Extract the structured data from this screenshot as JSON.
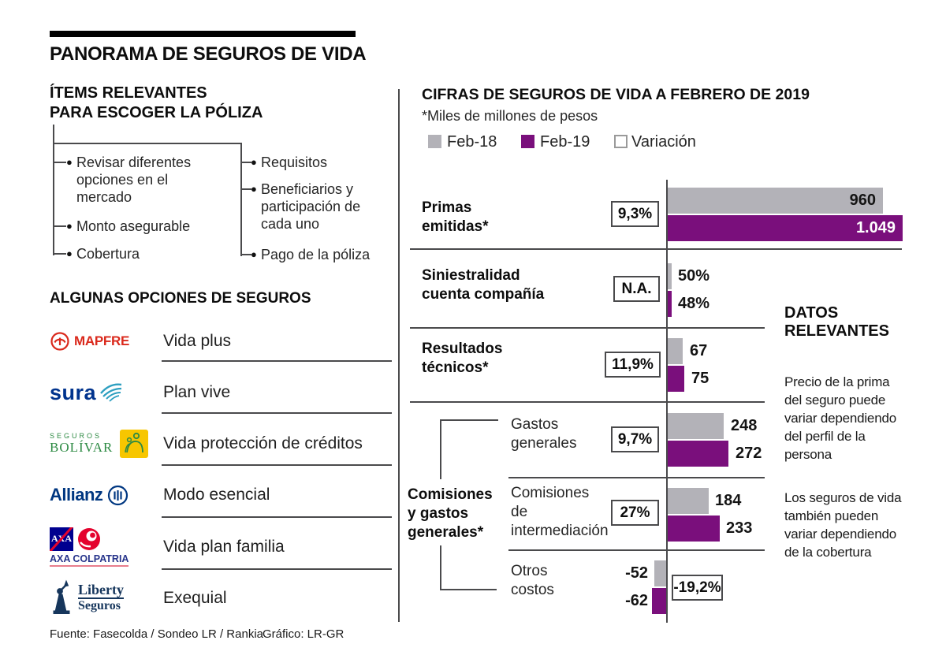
{
  "title": "PANORAMA DE SEGUROS DE VIDA",
  "items_section": {
    "heading": "ÍTEMS RELEVANTES\nPARA ESCOGER LA PÓLIZA",
    "left_items": [
      "Revisar diferentes\nopciones en el\nmercado",
      "Monto asegurable",
      "Cobertura"
    ],
    "right_items": [
      "Requisitos",
      "Beneficiarios y\nparticipación de\ncada uno",
      "Pago de la póliza"
    ]
  },
  "options_section": {
    "heading": "ALGUNAS OPCIONES DE SEGUROS",
    "rows": [
      {
        "brand": "MAPFRE",
        "product": "Vida plus"
      },
      {
        "brand": "sura",
        "product": "Plan vive"
      },
      {
        "brand_top": "SEGUROS",
        "brand": "BOLÍVAR",
        "product": "Vida protección de créditos"
      },
      {
        "brand": "Allianz",
        "product": "Modo esencial"
      },
      {
        "box_text": "AXA",
        "brand": "AXA COLPATRIA",
        "product": "Vida plan familia"
      },
      {
        "brand": "Liberty",
        "brand2": "Seguros",
        "product": "Exequial"
      }
    ]
  },
  "chart_data": {
    "type": "bar",
    "title": "CIFRAS DE SEGUROS DE VIDA A FEBRERO DE 2019",
    "subtitle": "*Miles de millones de pesos",
    "orientation": "horizontal",
    "legend": [
      {
        "label": "Feb-18",
        "color": "#b3b2b8"
      },
      {
        "label": "Feb-19",
        "color": "#7a0f7c"
      },
      {
        "label": "Variación",
        "color": "#ffffff"
      }
    ],
    "series_names": [
      "Feb-18",
      "Feb-19"
    ],
    "group_label": "Comisiones\ny gastos\ngenerales*",
    "rows": [
      {
        "label": "Primas\nemitidas*",
        "variation": "9,3%",
        "feb18": 960,
        "feb19": 1049,
        "feb18_label": "960",
        "feb19_label": "1.049"
      },
      {
        "label": "Siniestralidad\ncuenta compañía",
        "variation": "N.A.",
        "feb18": null,
        "feb19": null,
        "feb18_label": "50%",
        "feb19_label": "48%"
      },
      {
        "label": "Resultados\ntécnicos*",
        "variation": "11,9%",
        "feb18": 67,
        "feb19": 75,
        "feb18_label": "67",
        "feb19_label": "75"
      },
      {
        "label": "Gastos\ngenerales",
        "variation": "9,7%",
        "feb18": 248,
        "feb19": 272,
        "feb18_label": "248",
        "feb19_label": "272",
        "group": "Comisiones y gastos generales*"
      },
      {
        "label": "Comisiones\nde\nintermediación",
        "variation": "27%",
        "feb18": 184,
        "feb19": 233,
        "feb18_label": "184",
        "feb19_label": "233",
        "group": "Comisiones y gastos generales*"
      },
      {
        "label": "Otros\ncostos",
        "variation": "-19,2%",
        "feb18": -52,
        "feb19": -62,
        "feb18_label": "-52",
        "feb19_label": "-62",
        "group": "Comisiones y gastos generales*"
      }
    ]
  },
  "datos": {
    "heading": "DATOS\nRELEVANTES",
    "p1": "Precio de la prima\ndel seguro puede\nvariar dependiendo\ndel perfil de la\npersona",
    "p2": "Los seguros de vida\ntambién pueden\nvariar dependiendo\nde la cobertura"
  },
  "footer": {
    "source": "Fuente: Fasecolda / Sondeo LR / Rankia",
    "credit": "Gráfico: LR-GR"
  },
  "colors": {
    "feb18": "#b3b2b8",
    "feb19": "#7a0f7c",
    "rule": "#4a4a4c"
  }
}
